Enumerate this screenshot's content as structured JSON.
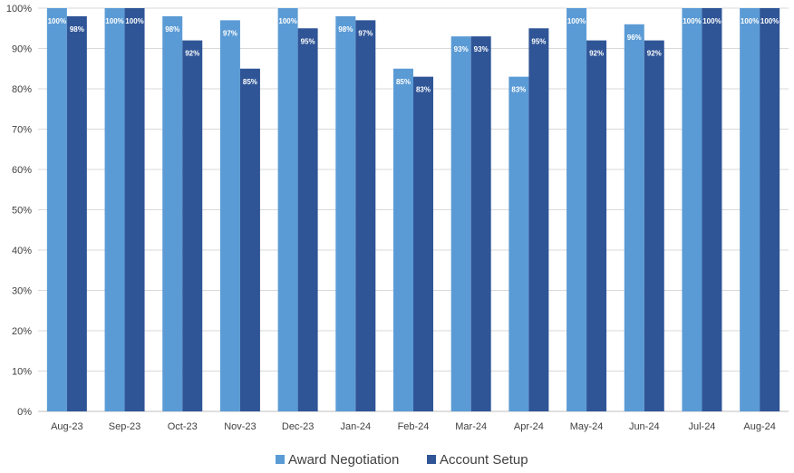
{
  "chart_data": {
    "type": "bar",
    "title": "",
    "xlabel": "",
    "ylabel": "",
    "ylim": [
      0,
      100
    ],
    "y_ticks": [
      "0%",
      "10%",
      "20%",
      "30%",
      "40%",
      "50%",
      "60%",
      "70%",
      "80%",
      "90%",
      "100%"
    ],
    "grid": true,
    "legend_position": "bottom",
    "categories": [
      "Aug-23",
      "Sep-23",
      "Oct-23",
      "Nov-23",
      "Dec-23",
      "Jan-24",
      "Feb-24",
      "Mar-24",
      "Apr-24",
      "May-24",
      "Jun-24",
      "Jul-24",
      "Aug-24"
    ],
    "series": [
      {
        "name": "Award Negotiation",
        "color": "#5b9bd5",
        "values": [
          100,
          100,
          98,
          97,
          100,
          98,
          85,
          93,
          83,
          100,
          96,
          100,
          100
        ],
        "labels": [
          "100%",
          "100%",
          "98%",
          "97%",
          "100%",
          "98%",
          "85%",
          "93%",
          "83%",
          "100%",
          "96%",
          "100%",
          "100%"
        ]
      },
      {
        "name": "Account Setup",
        "color": "#2f5597",
        "values": [
          98,
          100,
          92,
          85,
          95,
          97,
          83,
          93,
          95,
          92,
          92,
          100,
          100
        ],
        "labels": [
          "98%",
          "100%",
          "92%",
          "85%",
          "95%",
          "97%",
          "83%",
          "93%",
          "95%",
          "92%",
          "92%",
          "100%",
          "100%"
        ]
      }
    ]
  }
}
